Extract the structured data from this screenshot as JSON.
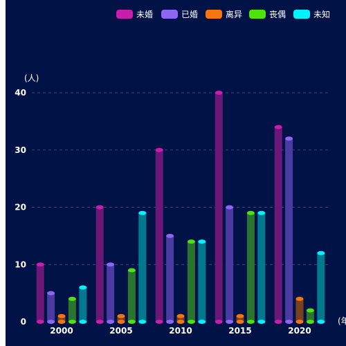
{
  "chart_data": {
    "type": "bar",
    "categories": [
      "2000",
      "2005",
      "2010",
      "2015",
      "2020"
    ],
    "series": [
      {
        "name": "未婚",
        "values": [
          10,
          20,
          30,
          40,
          34
        ],
        "color": "#c71eab",
        "bar_color": "#6a1877"
      },
      {
        "name": "已婚",
        "values": [
          5,
          10,
          15,
          20,
          32
        ],
        "color": "#8e66f2",
        "bar_color": "#4a3aa2"
      },
      {
        "name": "离异",
        "values": [
          1,
          1,
          1,
          1,
          4
        ],
        "color": "#f7740f",
        "bar_color": "#7a411d"
      },
      {
        "name": "丧偶",
        "values": [
          4,
          9,
          14,
          19,
          2
        ],
        "color": "#4ee30f",
        "bar_color": "#2a7430"
      },
      {
        "name": "未知",
        "values": [
          6,
          19,
          14,
          19,
          12
        ],
        "color": "#00f3ff",
        "bar_color": "#00798f"
      }
    ],
    "ylabel": "(人)",
    "xlabel": "(年",
    "ylim": [
      0,
      40
    ],
    "yticks": [
      0,
      10,
      20,
      30,
      40
    ],
    "grid": true,
    "legend": "top-right",
    "background": "#011246"
  }
}
